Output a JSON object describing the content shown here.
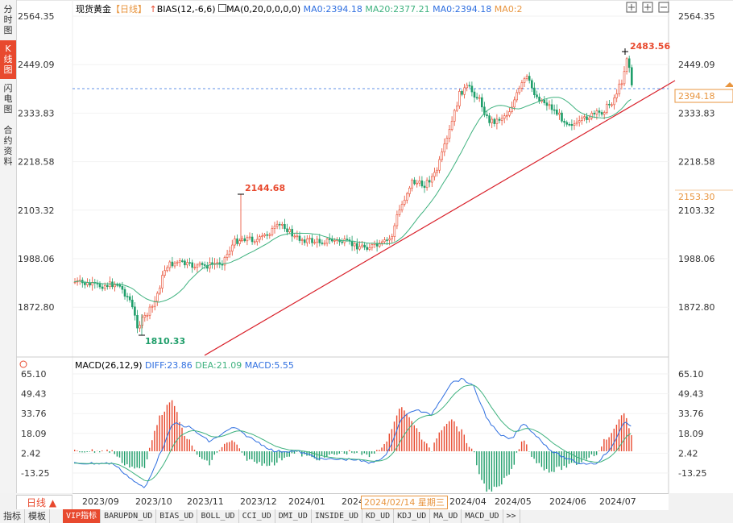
{
  "sidebar": {
    "tabs": [
      {
        "label": "分时图",
        "active": false
      },
      {
        "label": "K线图",
        "active": true
      },
      {
        "label": "闪电图",
        "active": false
      },
      {
        "label": "合约资料",
        "active": false
      }
    ]
  },
  "header": {
    "instrument": "现货黄金",
    "period": "【日线】",
    "bias_label": "BIAS(12,-6,6)",
    "ma_label": "MA(0,20,0,0,0,0)",
    "ma0_a": "MA0:2394.18",
    "ma20": "MA20:2377.21",
    "ma0_b": "MA0:2394.18",
    "ma0_c": "MA0:2"
  },
  "price_axis": {
    "ticks": [
      "2564.35",
      "2449.09",
      "2333.83",
      "2218.58",
      "2103.32",
      "1988.06",
      "1872.80"
    ],
    "current_price": "2394.18",
    "level_label": "2153.30"
  },
  "annotations": {
    "high": "2483.56",
    "mid_high": "2144.68",
    "low": "1810.33"
  },
  "macd": {
    "label": "MACD(26,12,9)",
    "diff": "DIFF:23.86",
    "dea": "DEA:21.09",
    "macd": "MACD:5.55",
    "ticks": [
      "65.10",
      "49.43",
      "33.76",
      "18.09",
      "2.42",
      "-13.25"
    ]
  },
  "x_axis": {
    "labels": [
      "2023/09",
      "2023/10",
      "2023/11",
      "2023/12",
      "2024/01",
      "2024",
      "2024/04",
      "2024/05",
      "2024/06",
      "2024/07"
    ],
    "hover_label": "2024/02/14 星期三"
  },
  "bottom": {
    "period_tab": "日线",
    "left_tabs": [
      "指标",
      "模板"
    ],
    "indicator_tabs": [
      "VIP指标",
      "BARUPDN_UD",
      "BIAS_UD",
      "BOLL_UD",
      "CCI_UD",
      "DMI_UD",
      "INSIDE_UD",
      "KD_UD",
      "KDJ_UD",
      "MA_UD",
      "MACD_UD",
      ">>"
    ]
  },
  "colors": {
    "up": "#e8492e",
    "down": "#1f9e6a",
    "ma20": "#3fb27f",
    "diff": "#2f6fe0",
    "dea": "#3fb27f",
    "trend": "#d9202a"
  }
}
